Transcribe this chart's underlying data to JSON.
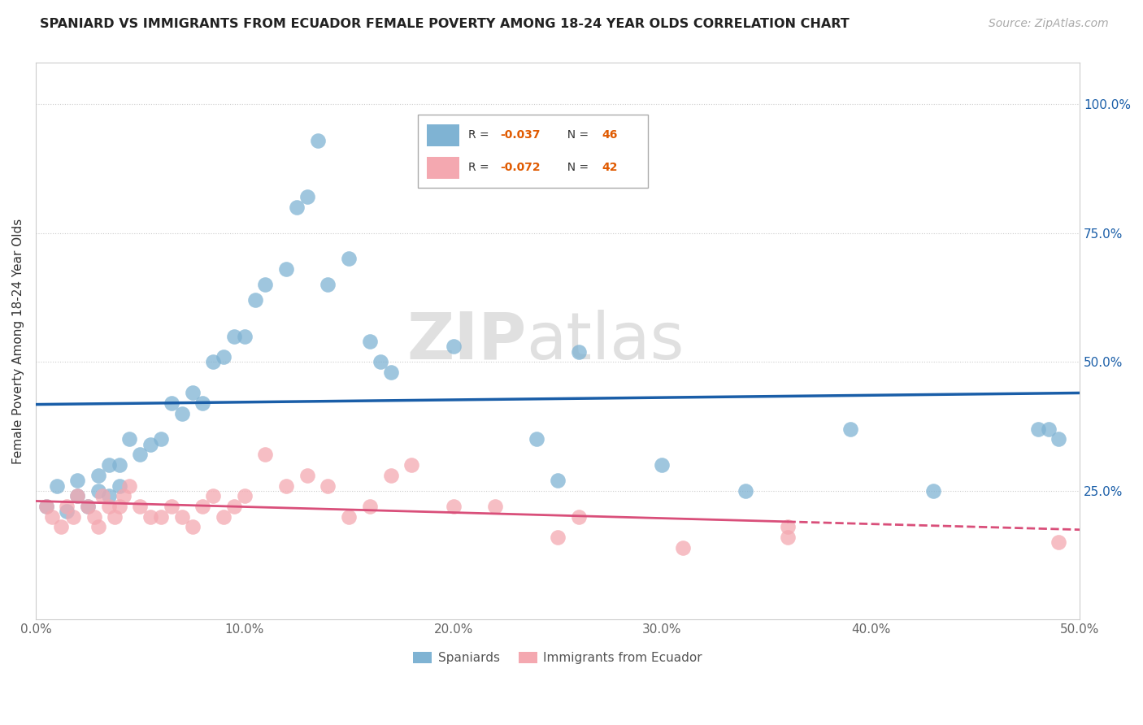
{
  "title": "SPANIARD VS IMMIGRANTS FROM ECUADOR FEMALE POVERTY AMONG 18-24 YEAR OLDS CORRELATION CHART",
  "source": "Source: ZipAtlas.com",
  "ylabel": "Female Poverty Among 18-24 Year Olds",
  "xlim": [
    0.0,
    0.5
  ],
  "ylim": [
    0.0,
    1.08
  ],
  "xticks": [
    0.0,
    0.1,
    0.2,
    0.3,
    0.4,
    0.5
  ],
  "xtick_labels": [
    "0.0%",
    "10.0%",
    "20.0%",
    "30.0%",
    "40.0%",
    "50.0%"
  ],
  "yticks": [
    0.25,
    0.5,
    0.75,
    1.0
  ],
  "ytick_labels": [
    "25.0%",
    "50.0%",
    "75.0%",
    "100.0%"
  ],
  "blue_color": "#7fb3d3",
  "pink_color": "#f4a8b0",
  "blue_line_color": "#1a5ea8",
  "pink_line_color": "#d94f7a",
  "watermark_zip": "ZIP",
  "watermark_atlas": "atlas",
  "blue_scatter_x": [
    0.005,
    0.01,
    0.015,
    0.02,
    0.02,
    0.025,
    0.03,
    0.03,
    0.035,
    0.035,
    0.04,
    0.04,
    0.045,
    0.05,
    0.055,
    0.06,
    0.065,
    0.07,
    0.075,
    0.08,
    0.085,
    0.09,
    0.095,
    0.1,
    0.105,
    0.11,
    0.12,
    0.125,
    0.13,
    0.135,
    0.14,
    0.15,
    0.16,
    0.165,
    0.17,
    0.2,
    0.24,
    0.26,
    0.39,
    0.48,
    0.485,
    0.49,
    0.25,
    0.3,
    0.34,
    0.43
  ],
  "blue_scatter_y": [
    0.22,
    0.26,
    0.21,
    0.24,
    0.27,
    0.22,
    0.25,
    0.28,
    0.24,
    0.3,
    0.26,
    0.3,
    0.35,
    0.32,
    0.34,
    0.35,
    0.42,
    0.4,
    0.44,
    0.42,
    0.5,
    0.51,
    0.55,
    0.55,
    0.62,
    0.65,
    0.68,
    0.8,
    0.82,
    0.93,
    0.65,
    0.7,
    0.54,
    0.5,
    0.48,
    0.53,
    0.35,
    0.52,
    0.37,
    0.37,
    0.37,
    0.35,
    0.27,
    0.3,
    0.25,
    0.25
  ],
  "pink_scatter_x": [
    0.005,
    0.008,
    0.012,
    0.015,
    0.018,
    0.02,
    0.025,
    0.028,
    0.03,
    0.032,
    0.035,
    0.038,
    0.04,
    0.042,
    0.045,
    0.05,
    0.055,
    0.06,
    0.065,
    0.07,
    0.075,
    0.08,
    0.085,
    0.09,
    0.095,
    0.1,
    0.11,
    0.12,
    0.13,
    0.14,
    0.15,
    0.16,
    0.17,
    0.18,
    0.2,
    0.22,
    0.25,
    0.26,
    0.31,
    0.36,
    0.36,
    0.49
  ],
  "pink_scatter_y": [
    0.22,
    0.2,
    0.18,
    0.22,
    0.2,
    0.24,
    0.22,
    0.2,
    0.18,
    0.24,
    0.22,
    0.2,
    0.22,
    0.24,
    0.26,
    0.22,
    0.2,
    0.2,
    0.22,
    0.2,
    0.18,
    0.22,
    0.24,
    0.2,
    0.22,
    0.24,
    0.32,
    0.26,
    0.28,
    0.26,
    0.2,
    0.22,
    0.28,
    0.3,
    0.22,
    0.22,
    0.16,
    0.2,
    0.14,
    0.16,
    0.18,
    0.15
  ]
}
